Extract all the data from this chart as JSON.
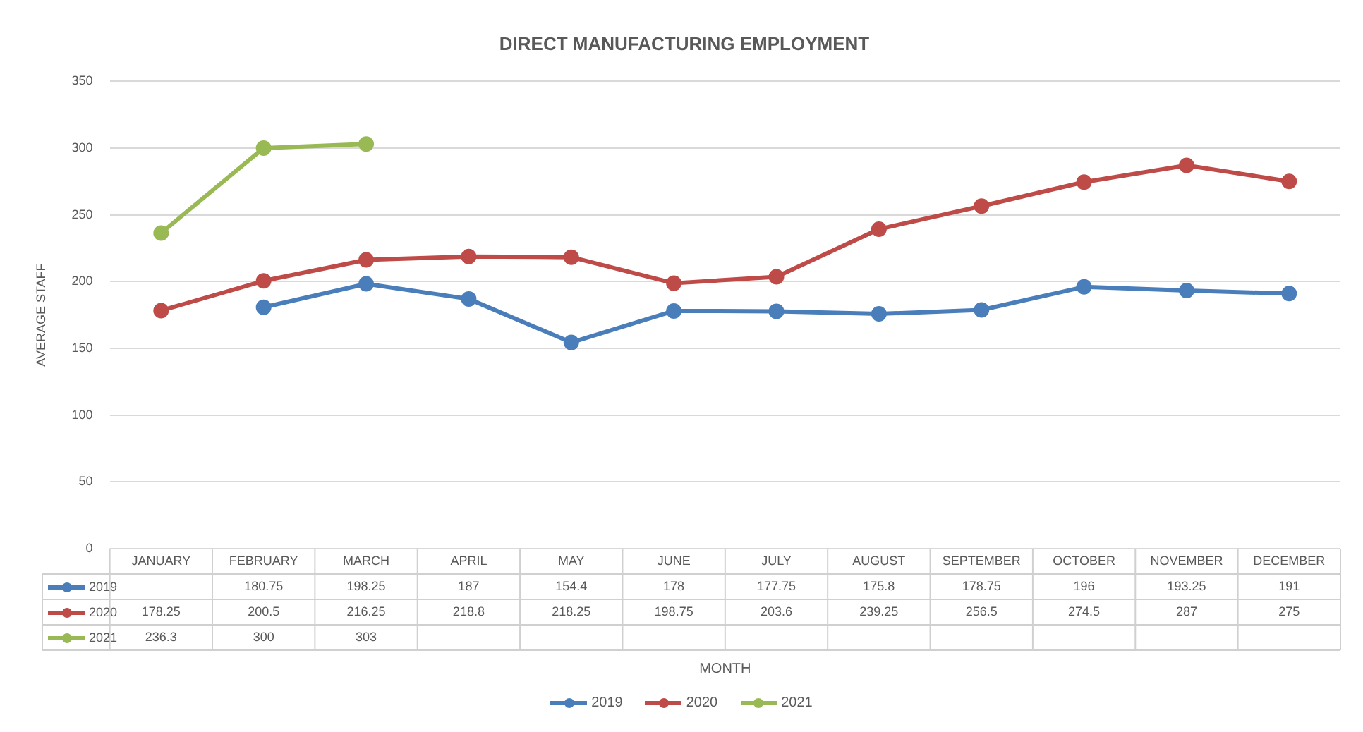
{
  "chart_data": {
    "type": "line",
    "title": "DIRECT MANUFACTURING EMPLOYMENT",
    "annotations": [
      "MONTH"
    ],
    "ylabel": "AVERAGE STAFF",
    "categories": [
      "JANUARY",
      "FEBRUARY",
      "MARCH",
      "APRIL",
      "MAY",
      "JUNE",
      "JULY",
      "AUGUST",
      "SEPTEMBER",
      "OCTOBER",
      "NOVEMBER",
      "DECEMBER"
    ],
    "series": [
      {
        "name": "2019",
        "color": "#4a7ebb",
        "values": [
          null,
          180.75,
          198.25,
          187,
          154.4,
          178,
          177.75,
          175.8,
          178.75,
          196,
          193.25,
          191
        ]
      },
      {
        "name": "2020",
        "color": "#be4b48",
        "values": [
          178.25,
          200.5,
          216.25,
          218.8,
          218.25,
          198.75,
          203.6,
          239.25,
          256.5,
          274.5,
          287,
          275
        ]
      },
      {
        "name": "2021",
        "color": "#98b954",
        "values": [
          236.3,
          300,
          303,
          null,
          null,
          null,
          null,
          null,
          null,
          null,
          null,
          null
        ]
      }
    ],
    "ylim": [
      0,
      350
    ],
    "yticks": [
      0,
      50,
      100,
      150,
      200,
      250,
      300,
      350
    ],
    "grid": "y",
    "legend": "bottom",
    "marker": "circle",
    "line_style": "solid",
    "data_labels": true
  }
}
